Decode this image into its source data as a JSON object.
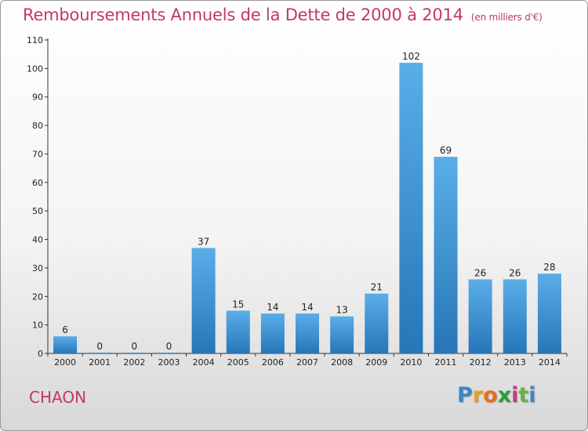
{
  "header": {
    "title": "Remboursements Annuels de la Dette de 2000 à 2014",
    "unit": "(en milliers d'€)"
  },
  "footer": {
    "town": "CHAON",
    "logo": {
      "letters": [
        "P",
        "r",
        "o",
        "x",
        "i",
        "t",
        "i"
      ],
      "colors": [
        "#3a86c8",
        "#e5a21b",
        "#e96c1e",
        "#2a9d3a",
        "#c43d8a",
        "#6ab33c",
        "#3a86c8"
      ]
    }
  },
  "chart_data": {
    "type": "bar",
    "categories": [
      "2000",
      "2001",
      "2002",
      "2003",
      "2004",
      "2005",
      "2006",
      "2007",
      "2008",
      "2009",
      "2010",
      "2011",
      "2012",
      "2013",
      "2014"
    ],
    "values": [
      6,
      0,
      0,
      0,
      37,
      15,
      14,
      14,
      13,
      21,
      102,
      69,
      26,
      26,
      28
    ],
    "ylim": [
      0,
      110
    ],
    "yticks": [
      0,
      10,
      20,
      30,
      40,
      50,
      60,
      70,
      80,
      90,
      100,
      110
    ],
    "grid": false,
    "bar_color_top": "#5aaee8",
    "bar_color_bottom": "#2676b8"
  }
}
